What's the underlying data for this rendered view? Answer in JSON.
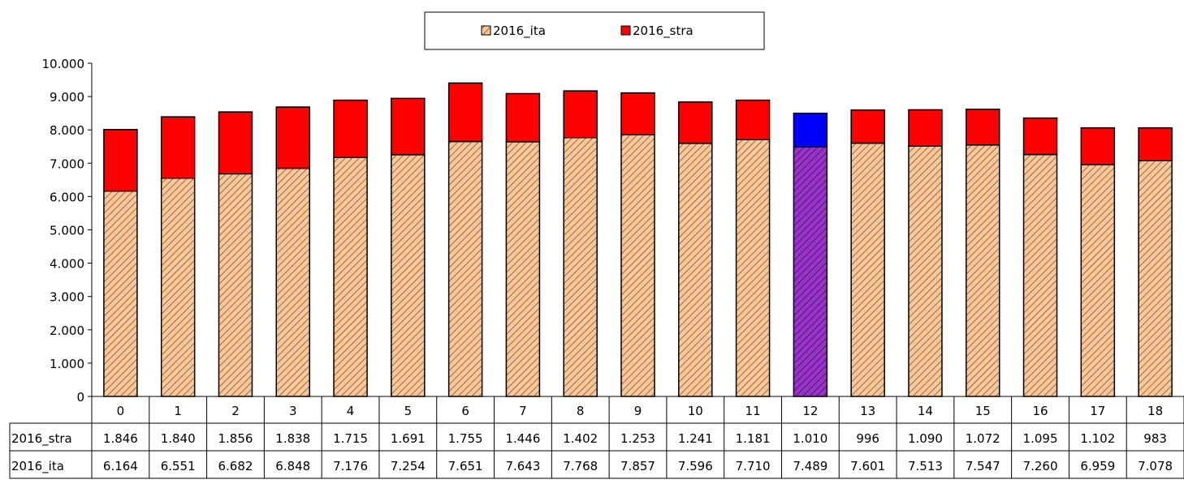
{
  "chart_data": {
    "type": "bar",
    "stacked": true,
    "categories": [
      "0",
      "1",
      "2",
      "3",
      "4",
      "5",
      "6",
      "7",
      "8",
      "9",
      "10",
      "11",
      "12",
      "13",
      "14",
      "15",
      "16",
      "17",
      "18"
    ],
    "series": [
      {
        "name": "2016_ita",
        "values": [
          6164,
          6551,
          6682,
          6848,
          7176,
          7254,
          7651,
          7643,
          7768,
          7857,
          7596,
          7710,
          7489,
          7601,
          7513,
          7547,
          7260,
          6959,
          7078
        ],
        "labels": [
          "6.164",
          "6.551",
          "6.682",
          "6.848",
          "7.176",
          "7.254",
          "7.651",
          "7.643",
          "7.768",
          "7.857",
          "7.596",
          "7.710",
          "7.489",
          "7.601",
          "7.513",
          "7.547",
          "7.260",
          "6.959",
          "7.078"
        ],
        "color": "#f4c8a0",
        "hatch": "#b5651d",
        "highlight_color": "#9933cc"
      },
      {
        "name": "2016_stra",
        "values": [
          1846,
          1840,
          1856,
          1838,
          1715,
          1691,
          1755,
          1446,
          1402,
          1253,
          1241,
          1181,
          1010,
          996,
          1090,
          1072,
          1095,
          1102,
          983
        ],
        "labels": [
          "1.846",
          "1.840",
          "1.856",
          "1.838",
          "1.715",
          "1.691",
          "1.755",
          "1.446",
          "1.402",
          "1.253",
          "1.241",
          "1.181",
          "1.010",
          "996",
          "1.090",
          "1.072",
          "1.095",
          "1.102",
          "983"
        ],
        "color": "#ff0000",
        "highlight_color": "#0000ff"
      }
    ],
    "highlight_category": "12",
    "ylim": [
      0,
      10000
    ],
    "yticks": [
      "0",
      "1.000",
      "2.000",
      "3.000",
      "4.000",
      "5.000",
      "6.000",
      "7.000",
      "8.000",
      "9.000",
      "10.000"
    ],
    "legend": "top-center",
    "data_table": true
  }
}
